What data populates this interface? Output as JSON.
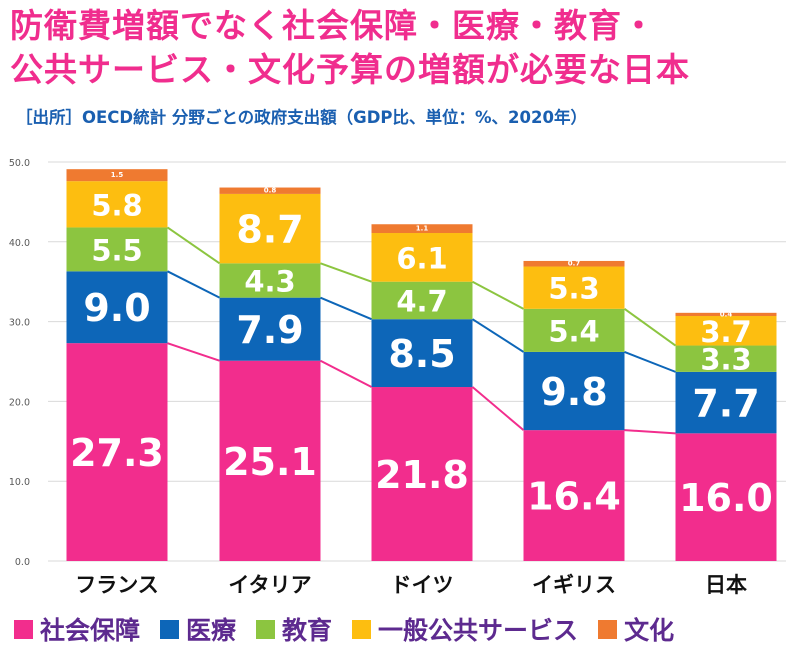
{
  "header": {
    "title_line1": "防衛費増額でなく社会保障・医療・教育・",
    "title_line2": "公共サービス・文化予算の増額が必要な日本",
    "subtitle": "［出所］OECD統計 分野ごとの政府支出額（GDP比、単位：%、2020年）"
  },
  "colors": {
    "title": "#f02d8e",
    "subtitle": "#1a5fb0",
    "social_security": "#f22d8d",
    "health": "#0d66b8",
    "education": "#8cc540",
    "general_public_services": "#fdbe10",
    "culture": "#ef7a30",
    "legend_text": "#5d2a8f"
  },
  "chart_data": {
    "type": "bar",
    "stacked": true,
    "categories": [
      "フランス",
      "イタリア",
      "ドイツ",
      "イギリス",
      "日本"
    ],
    "ylim": [
      0,
      50
    ],
    "yticks": [
      "0.0",
      "10.0",
      "20.0",
      "30.0",
      "40.0",
      "50.0"
    ],
    "grid": true,
    "legend_position": "bottom",
    "series": [
      {
        "name": "社会保障",
        "color": "#f22d8d",
        "values": [
          27.3,
          25.1,
          21.8,
          16.4,
          16.0
        ],
        "labels": [
          "27.3",
          "25.1",
          "21.8",
          "16.4",
          "16.0"
        ]
      },
      {
        "name": "医療",
        "color": "#0d66b8",
        "values": [
          9.0,
          7.9,
          8.5,
          9.8,
          7.7
        ],
        "labels": [
          "9.0",
          "7.9",
          "8.5",
          "9.8",
          "7.7"
        ]
      },
      {
        "name": "教育",
        "color": "#8cc540",
        "values": [
          5.5,
          4.3,
          4.7,
          5.4,
          3.3
        ],
        "labels": [
          "5.5",
          "4.3",
          "4.7",
          "5.4",
          "3.3"
        ]
      },
      {
        "name": "一般公共サービス",
        "color": "#fdbe10",
        "values": [
          5.8,
          8.7,
          6.1,
          5.3,
          3.7
        ],
        "labels": [
          "5.8",
          "8.7",
          "6.1",
          "5.3",
          "3.7"
        ]
      },
      {
        "name": "文化",
        "color": "#ef7a30",
        "values": [
          1.5,
          0.8,
          1.1,
          0.7,
          0.4
        ],
        "labels": [
          "1.5",
          "0.8",
          "1.1",
          "0.7",
          "0.4"
        ]
      }
    ]
  }
}
